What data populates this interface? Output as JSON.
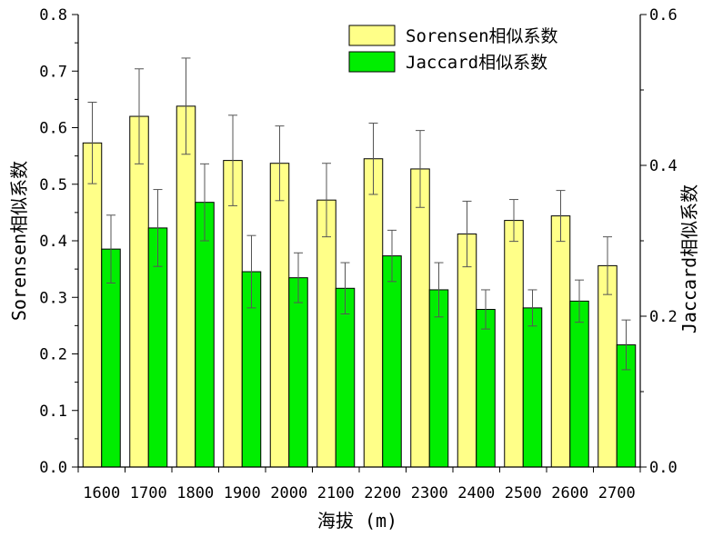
{
  "chart_data": {
    "type": "bar",
    "xlabel": "海拔 (m)",
    "ylabel": "Sorensen相似系数",
    "y2label": "Jaccard相似系数",
    "categories": [
      "1600",
      "1700",
      "1800",
      "1900",
      "2000",
      "2100",
      "2200",
      "2300",
      "2400",
      "2500",
      "2600",
      "2700"
    ],
    "ylim": [
      0,
      0.8
    ],
    "y2lim": [
      0,
      0.6
    ],
    "yticks": [
      "0.0",
      "0.1",
      "0.2",
      "0.3",
      "0.4",
      "0.5",
      "0.6",
      "0.7",
      "0.8"
    ],
    "y2ticks": [
      "0.0",
      "0.2",
      "0.4",
      "0.6"
    ],
    "legend_position": "top-right",
    "grid": false,
    "series": [
      {
        "name": "Sorensen相似系数",
        "axis": "left",
        "color": "#ffff88",
        "values": [
          0.573,
          0.62,
          0.638,
          0.542,
          0.537,
          0.472,
          0.545,
          0.527,
          0.412,
          0.436,
          0.444,
          0.356
        ],
        "error": [
          0.072,
          0.084,
          0.085,
          0.08,
          0.066,
          0.065,
          0.063,
          0.068,
          0.058,
          0.037,
          0.045,
          0.051
        ]
      },
      {
        "name": "Jaccard相似系数",
        "axis": "right",
        "color": "#00ee00",
        "values": [
          0.289,
          0.317,
          0.351,
          0.259,
          0.251,
          0.237,
          0.28,
          0.235,
          0.209,
          0.211,
          0.22,
          0.162
        ],
        "error": [
          0.045,
          0.051,
          0.051,
          0.048,
          0.033,
          0.034,
          0.034,
          0.036,
          0.026,
          0.024,
          0.028,
          0.033
        ]
      }
    ]
  }
}
